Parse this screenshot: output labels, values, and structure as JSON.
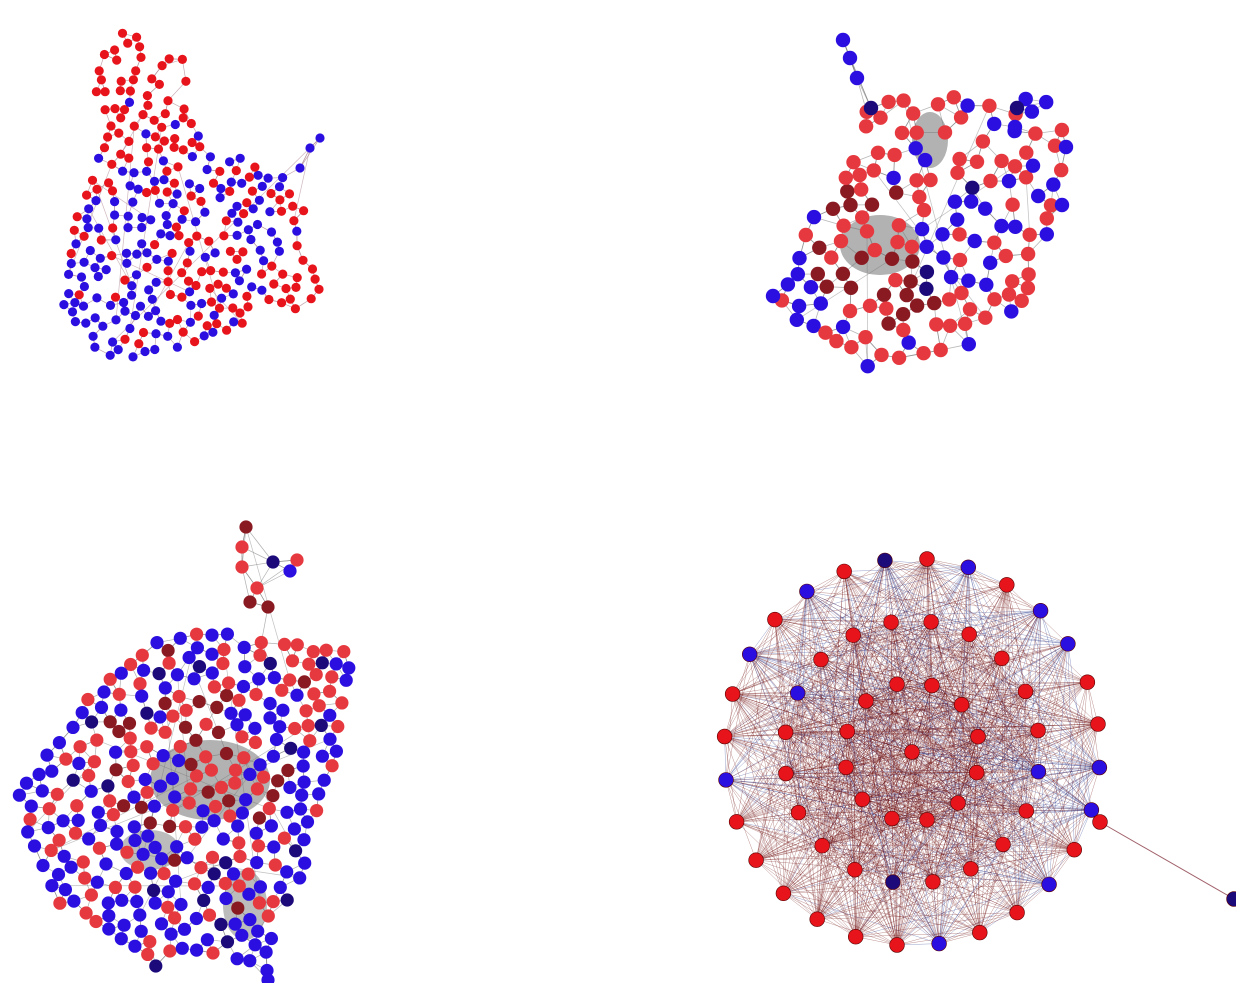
{
  "figure": {
    "panel_count": 4,
    "background": "#ffffff",
    "palette": {
      "red": "#e8141c",
      "light_red": "#e6393f",
      "dark_red": "#8a1a22",
      "blue": "#2a0fe0",
      "dark_blue": "#1c0a7a",
      "edge_light": "#b4909a",
      "edge_grey": "#6f6f6f",
      "edge_dark_red": "#6e0d0d",
      "edge_navy": "#20308a"
    },
    "panels": [
      {
        "id": "top-left",
        "style": "small-nodes",
        "node_colors": [
          "red",
          "blue"
        ]
      },
      {
        "id": "top-right",
        "style": "medium-nodes",
        "node_colors": [
          "light_red",
          "dark_red",
          "blue",
          "dark_blue"
        ]
      },
      {
        "id": "bottom-left",
        "style": "medium-nodes",
        "node_colors": [
          "light_red",
          "dark_red",
          "blue",
          "dark_blue"
        ]
      },
      {
        "id": "bottom-right",
        "style": "dense-complete-graph",
        "node_colors": [
          "red",
          "blue",
          "dark_blue"
        ]
      }
    ]
  }
}
